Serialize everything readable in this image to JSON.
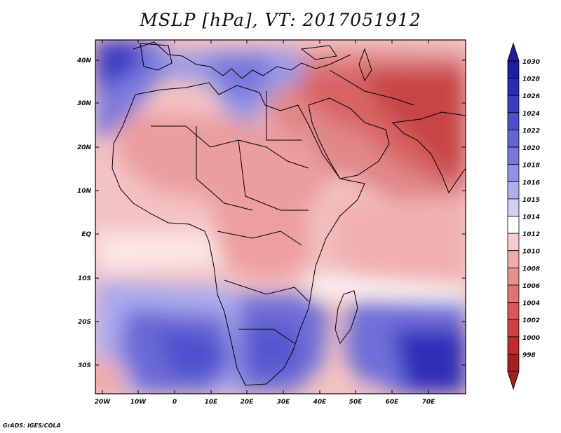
{
  "title": "MSLP [hPa], VT: 2017051912",
  "credit": "GrADS: IGES/COLA",
  "lat_labels": [
    "40N",
    "30N",
    "20N",
    "10N",
    "EQ",
    "10S",
    "20S",
    "30S"
  ],
  "lon_labels": [
    "20W",
    "10W",
    "0",
    "10E",
    "20E",
    "30E",
    "40E",
    "50E",
    "60E",
    "70E"
  ],
  "colorbar": {
    "levels": [
      "1030",
      "1028",
      "1026",
      "1024",
      "1022",
      "1020",
      "1018",
      "1016",
      "1015",
      "1014",
      "1012",
      "1010",
      "1008",
      "1006",
      "1004",
      "1002",
      "1000",
      "998"
    ],
    "colors": [
      "#1e1ea0",
      "#2a2ab4",
      "#3c3cc3",
      "#4f4fcc",
      "#6464d4",
      "#7878dc",
      "#9090e4",
      "#aeaeee",
      "#d0d0f6",
      "#ffffff",
      "#f6cccc",
      "#f0aaaa",
      "#e88e8e",
      "#e07272",
      "#d85858",
      "#cc4040",
      "#bc2e2e",
      "#a62020"
    ]
  }
}
